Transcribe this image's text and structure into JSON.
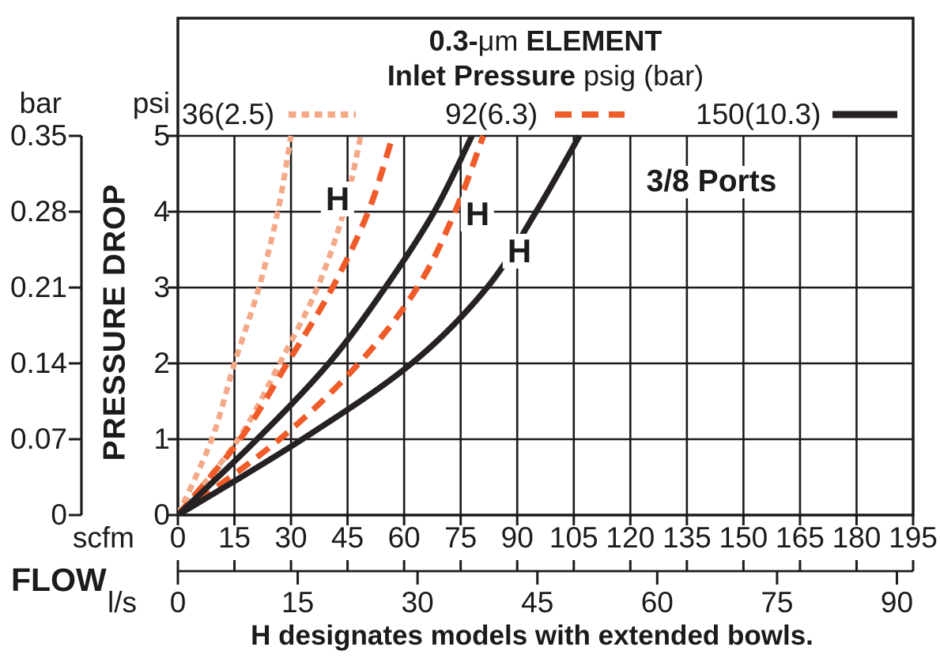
{
  "title": {
    "element_prefix": "0.3-",
    "element_mu": "μm",
    "element_suffix": " ELEMENT",
    "pressure_bold": "Inlet Pressure",
    "pressure_rest": " psig (bar)"
  },
  "legend": {
    "items": [
      {
        "label": "36(2.5)",
        "line": "dotted",
        "color": "#F4A988"
      },
      {
        "label": "92(6.3)",
        "line": "dashed",
        "color": "#EF5B29"
      },
      {
        "label": "150(10.3)",
        "line": "solid",
        "color": "#262223"
      }
    ]
  },
  "annotations": {
    "ports": "3/8 Ports",
    "h_labels": [
      "H",
      "H",
      "H"
    ],
    "note": "H designates models with extended bowls."
  },
  "axes": {
    "pressure": {
      "bar_header": "bar",
      "psi_header": "psi",
      "axis_label": "PRESSURE DROP",
      "bar_ticks": [
        "0.35",
        "0.28",
        "0.21",
        "0.14",
        "0.07",
        "0"
      ],
      "psi_ticks": [
        "5",
        "4",
        "3",
        "2",
        "1",
        "0"
      ]
    },
    "flow": {
      "flow_label": "FLOW",
      "scfm_unit": "scfm",
      "ls_unit": "l/s",
      "scfm_ticks": [
        "0",
        "15",
        "30",
        "45",
        "60",
        "75",
        "90",
        "105",
        "120",
        "135",
        "150",
        "165",
        "180",
        "195"
      ],
      "ls_ticks": [
        "0",
        "15",
        "30",
        "45",
        "60",
        "75",
        "90"
      ]
    }
  },
  "chart_data": {
    "type": "line",
    "title": "0.3-μm ELEMENT",
    "subtitle": "Inlet Pressure psig (bar)",
    "x_axis": {
      "label": "FLOW",
      "units": [
        "scfm",
        "l/s"
      ],
      "scfm_range": [
        0,
        195
      ],
      "scfm_tick_step": 15,
      "ls_range": [
        0,
        90
      ],
      "ls_tick_step": 15
    },
    "y_axis": {
      "label": "PRESSURE DROP",
      "units": [
        "psi",
        "bar"
      ],
      "psi_range": [
        0,
        5
      ],
      "psi_tick_step": 1,
      "bar_tick_values": [
        0,
        0.07,
        0.14,
        0.21,
        0.28,
        0.35
      ]
    },
    "grid": true,
    "legend_position": "top",
    "series": [
      {
        "name": "36(2.5)",
        "inlet_pressure_psig": 36,
        "inlet_pressure_bar": 2.5,
        "variant": "standard",
        "line": "dotted",
        "color": "#F4A988",
        "psi": [
          0,
          1,
          2,
          3,
          4,
          5
        ],
        "scfm": [
          0,
          9,
          15,
          21.5,
          26.5,
          30
        ]
      },
      {
        "name": "36(2.5) H",
        "inlet_pressure_psig": 36,
        "inlet_pressure_bar": 2.5,
        "variant": "extended-bowl",
        "line": "dotted",
        "color": "#F4A988",
        "psi": [
          0,
          1,
          2,
          3,
          4,
          5
        ],
        "scfm": [
          0,
          16,
          27,
          37,
          44,
          48.5
        ]
      },
      {
        "name": "92(6.3)",
        "inlet_pressure_psig": 92,
        "inlet_pressure_bar": 6.3,
        "variant": "standard",
        "line": "dashed",
        "color": "#EF5B29",
        "psi": [
          0,
          1,
          2,
          3,
          4,
          5
        ],
        "scfm": [
          0,
          16.5,
          29,
          41,
          50.5,
          57
        ]
      },
      {
        "name": "92(6.3) H",
        "inlet_pressure_psig": 92,
        "inlet_pressure_bar": 6.3,
        "variant": "extended-bowl",
        "line": "dashed",
        "color": "#EF5B29",
        "psi": [
          0,
          1,
          2,
          3,
          4,
          5
        ],
        "scfm": [
          0,
          27,
          48,
          63.5,
          73.5,
          81
        ]
      },
      {
        "name": "150(10.3)",
        "inlet_pressure_psig": 150,
        "inlet_pressure_bar": 10.3,
        "variant": "standard",
        "line": "solid",
        "color": "#262223",
        "psi": [
          0,
          1,
          2,
          3,
          4,
          5
        ],
        "scfm": [
          0,
          21,
          40,
          55,
          68,
          78
        ]
      },
      {
        "name": "150(10.3) H",
        "inlet_pressure_psig": 150,
        "inlet_pressure_bar": 10.3,
        "variant": "extended-bowl",
        "line": "solid",
        "color": "#262223",
        "psi": [
          0,
          1,
          2,
          3,
          4,
          5
        ],
        "scfm": [
          0,
          33,
          62,
          82,
          95,
          106.5
        ]
      }
    ]
  }
}
